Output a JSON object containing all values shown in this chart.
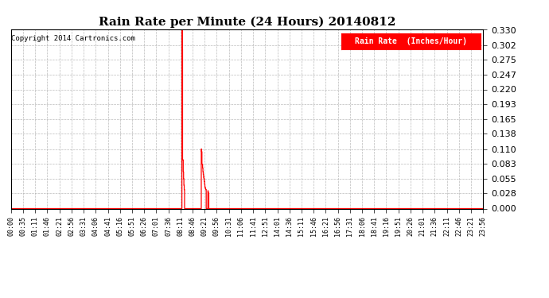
{
  "title": "Rain Rate per Minute (24 Hours) 20140812",
  "copyright_text": "Copyright 2014 Cartronics.com",
  "legend_label": "Rain Rate  (Inches/Hour)",
  "legend_bg": "#ff0000",
  "legend_text_color": "#ffffff",
  "line_color": "#ff0000",
  "bg_color": "#ffffff",
  "plot_bg_color": "#ffffff",
  "grid_color": "#aaaaaa",
  "yticks": [
    0.0,
    0.028,
    0.055,
    0.083,
    0.11,
    0.138,
    0.165,
    0.193,
    0.22,
    0.247,
    0.275,
    0.302,
    0.33
  ],
  "ylim": [
    0.0,
    0.33
  ],
  "total_minutes": 1440,
  "xtick_labels": [
    "00:00",
    "00:35",
    "01:11",
    "01:46",
    "02:21",
    "02:56",
    "03:31",
    "04:06",
    "04:41",
    "05:16",
    "05:51",
    "06:26",
    "07:01",
    "07:36",
    "08:11",
    "08:46",
    "09:21",
    "09:56",
    "10:31",
    "11:06",
    "11:41",
    "12:51",
    "14:01",
    "14:36",
    "15:11",
    "15:46",
    "16:21",
    "16:56",
    "17:31",
    "18:06",
    "18:41",
    "19:16",
    "19:51",
    "20:26",
    "21:01",
    "21:36",
    "22:11",
    "22:46",
    "23:21",
    "23:56"
  ],
  "rain_data": [
    [
      521,
      0.33
    ],
    [
      522,
      0.295
    ],
    [
      523,
      0.09
    ],
    [
      524,
      0.09
    ],
    [
      525,
      0.068
    ],
    [
      526,
      0.055
    ],
    [
      527,
      0.043
    ],
    [
      528,
      0.035
    ],
    [
      580,
      0.11
    ],
    [
      581,
      0.105
    ],
    [
      582,
      0.082
    ],
    [
      583,
      0.082
    ],
    [
      584,
      0.075
    ],
    [
      585,
      0.068
    ],
    [
      586,
      0.063
    ],
    [
      587,
      0.058
    ],
    [
      588,
      0.055
    ],
    [
      589,
      0.05
    ],
    [
      590,
      0.045
    ],
    [
      591,
      0.04
    ],
    [
      592,
      0.038
    ],
    [
      593,
      0.036
    ],
    [
      594,
      0.035
    ],
    [
      600,
      0.033
    ],
    [
      601,
      0.03
    ],
    [
      602,
      0.028
    ]
  ]
}
